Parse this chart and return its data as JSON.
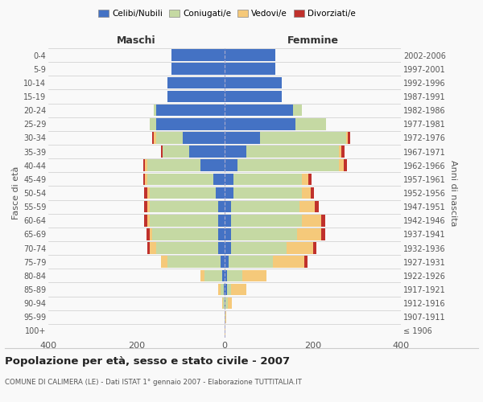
{
  "age_groups": [
    "100+",
    "95-99",
    "90-94",
    "85-89",
    "80-84",
    "75-79",
    "70-74",
    "65-69",
    "60-64",
    "55-59",
    "50-54",
    "45-49",
    "40-44",
    "35-39",
    "30-34",
    "25-29",
    "20-24",
    "15-19",
    "10-14",
    "5-9",
    "0-4"
  ],
  "birth_years": [
    "≤ 1906",
    "1907-1911",
    "1912-1916",
    "1917-1921",
    "1922-1926",
    "1927-1931",
    "1932-1936",
    "1937-1941",
    "1942-1946",
    "1947-1951",
    "1952-1956",
    "1957-1961",
    "1962-1966",
    "1967-1971",
    "1972-1976",
    "1977-1981",
    "1982-1986",
    "1987-1991",
    "1992-1996",
    "1997-2001",
    "2002-2006"
  ],
  "colors": {
    "celibe": "#4472c4",
    "coniugato": "#c5d9a3",
    "vedovo": "#f5c97a",
    "divorziato": "#c0312c"
  },
  "maschi": {
    "celibe": [
      0,
      0,
      0,
      2,
      5,
      10,
      15,
      15,
      15,
      15,
      20,
      25,
      55,
      80,
      95,
      155,
      155,
      130,
      130,
      120,
      120
    ],
    "coniugato": [
      0,
      0,
      3,
      8,
      40,
      120,
      140,
      150,
      155,
      155,
      150,
      150,
      120,
      60,
      60,
      15,
      5,
      0,
      0,
      0,
      0
    ],
    "vedovo": [
      0,
      0,
      2,
      5,
      10,
      15,
      15,
      5,
      5,
      5,
      5,
      5,
      5,
      0,
      5,
      0,
      0,
      0,
      0,
      0,
      0
    ],
    "divorziato": [
      0,
      0,
      0,
      0,
      0,
      0,
      5,
      8,
      8,
      8,
      8,
      5,
      5,
      5,
      5,
      0,
      0,
      0,
      0,
      0,
      0
    ]
  },
  "femmine": {
    "celibe": [
      0,
      0,
      2,
      5,
      5,
      10,
      15,
      15,
      15,
      15,
      20,
      20,
      30,
      50,
      80,
      160,
      155,
      130,
      130,
      115,
      115
    ],
    "coniugato": [
      0,
      2,
      5,
      10,
      35,
      100,
      125,
      150,
      160,
      155,
      155,
      155,
      230,
      210,
      195,
      70,
      20,
      0,
      0,
      0,
      0
    ],
    "vedovo": [
      2,
      2,
      10,
      35,
      55,
      70,
      60,
      55,
      45,
      35,
      20,
      15,
      10,
      5,
      5,
      0,
      0,
      0,
      0,
      0,
      0
    ],
    "divorziato": [
      0,
      0,
      0,
      0,
      0,
      8,
      8,
      8,
      8,
      8,
      8,
      8,
      8,
      8,
      5,
      0,
      0,
      0,
      0,
      0,
      0
    ]
  },
  "title": "Popolazione per età, sesso e stato civile - 2007",
  "subtitle": "COMUNE DI CALIMERA (LE) - Dati ISTAT 1° gennaio 2007 - Elaborazione TUTTITALIA.IT",
  "xlabel_left": "Maschi",
  "xlabel_right": "Femmine",
  "ylabel_left": "Fasce di età",
  "ylabel_right": "Anni di nascita",
  "xlim": 400,
  "legend_labels": [
    "Celibi/Nubili",
    "Coniugati/e",
    "Vedovi/e",
    "Divorziati/e"
  ],
  "bg_color": "#f9f9f9",
  "grid_color": "#cccccc",
  "bar_height": 0.85
}
